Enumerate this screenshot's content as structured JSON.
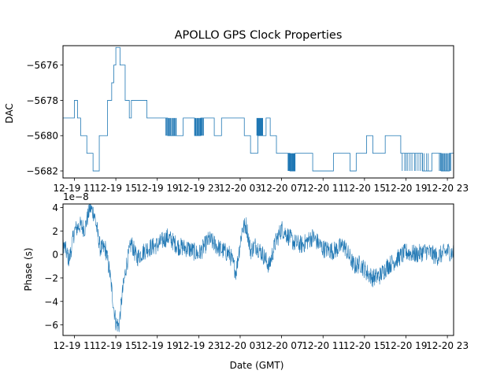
{
  "chart_data": [
    {
      "type": "line",
      "title": "APOLLO GPS Clock Properties",
      "xlabel": "",
      "ylabel": "DAC",
      "x_ticks": [
        "12-19 11",
        "12-19 15",
        "12-19 19",
        "12-19 23",
        "12-20 03",
        "12-20 07",
        "12-20 11",
        "12-20 15",
        "12-20 19",
        "12-20 23"
      ],
      "x_tick_hours": [
        11,
        15,
        19,
        23,
        27,
        31,
        35,
        39,
        43,
        47
      ],
      "xlim_hours": [
        9.9,
        47.6
      ],
      "ylim": [
        -5682.4,
        -5674.9
      ],
      "y_ticks": [
        -5676,
        -5678,
        -5680,
        -5682
      ],
      "y_tick_labels": [
        "−5676",
        "−5678",
        "−5680",
        "−5682"
      ],
      "grid": false,
      "series": [
        {
          "name": "DAC",
          "color": "#1f77b4",
          "hours": [
            9.9,
            11.0,
            11.3,
            11.6,
            12.2,
            12.8,
            13.4,
            14.2,
            14.6,
            14.8,
            15.0,
            15.4,
            15.9,
            16.3,
            16.5,
            17.5,
            18.0,
            18.5,
            19.0,
            20.0,
            21.5,
            22.6,
            23.2,
            24.5,
            25.2,
            25.8,
            26.2,
            27.4,
            28.0,
            28.7,
            29.5,
            29.9,
            30.5,
            31.8,
            32.3,
            33.0,
            34.0,
            35.3,
            36.0,
            37.6,
            38.2,
            38.5,
            39.2,
            39.8,
            41.0,
            42.5,
            43.3,
            44.6,
            45.5,
            46.4,
            47.2,
            47.6
          ],
          "values": [
            -5679,
            -5678,
            -5679,
            -5680,
            -5681,
            -5682,
            -5680,
            -5678,
            -5677,
            -5676,
            -5675,
            -5676,
            -5678,
            -5679,
            -5678,
            -5678,
            -5679,
            -5679,
            -5679,
            -5680,
            -5679,
            -5680,
            -5679,
            -5680,
            -5679,
            -5679,
            -5679,
            -5680,
            -5681,
            -5680,
            -5679,
            -5680,
            -5681,
            -5682,
            -5681,
            -5681,
            -5682,
            -5682,
            -5681,
            -5682,
            -5681,
            -5681,
            -5680,
            -5681,
            -5680,
            -5681,
            -5681,
            -5682,
            -5681,
            -5682,
            -5681,
            -5682
          ]
        }
      ]
    },
    {
      "type": "line",
      "title": "",
      "xlabel": "Date (GMT)",
      "ylabel": "Phase (s)",
      "offset_label": "1e−8",
      "x_ticks": [
        "12-19 11",
        "12-19 15",
        "12-19 19",
        "12-19 23",
        "12-20 03",
        "12-20 07",
        "12-20 11",
        "12-20 15",
        "12-20 19",
        "12-20 23"
      ],
      "x_tick_hours": [
        11,
        15,
        19,
        23,
        27,
        31,
        35,
        39,
        43,
        47
      ],
      "xlim_hours": [
        9.9,
        47.6
      ],
      "ylim": [
        -6.9,
        4.3
      ],
      "y_ticks": [
        4,
        2,
        0,
        -2,
        -4,
        -6
      ],
      "y_tick_labels": [
        "4",
        "2",
        "0",
        "−2",
        "−4",
        "−6"
      ],
      "grid": false,
      "series": [
        {
          "name": "Phase",
          "color": "#1f77b4",
          "hours": [
            9.9,
            10.5,
            11.0,
            11.5,
            12.0,
            12.5,
            12.9,
            13.5,
            14.0,
            14.4,
            14.8,
            15.0,
            15.3,
            15.6,
            16.0,
            16.5,
            17.0,
            18.0,
            19.0,
            20.0,
            21.0,
            22.0,
            23.0,
            24.0,
            25.0,
            26.0,
            26.6,
            27.2,
            27.6,
            28.0,
            28.5,
            29.2,
            29.8,
            30.4,
            31.0,
            31.6,
            32.2,
            33.0,
            34.0,
            35.0,
            36.0,
            37.0,
            38.0,
            38.6,
            39.2,
            39.8,
            40.5,
            41.2,
            42.0,
            43.0,
            44.0,
            45.0,
            46.0,
            47.0,
            47.6
          ],
          "values": [
            1.0,
            -0.5,
            2.0,
            2.5,
            2.2,
            4.0,
            3.5,
            0.5,
            0.5,
            -1.5,
            -4.5,
            -5.8,
            -6.1,
            -3.5,
            -1.0,
            1.0,
            -0.3,
            0.5,
            0.8,
            1.5,
            0.7,
            0.5,
            0.0,
            1.3,
            0.5,
            0.0,
            -1.5,
            2.2,
            2.5,
            0.3,
            0.8,
            0.0,
            -1.0,
            1.0,
            2.2,
            1.6,
            1.0,
            0.8,
            1.5,
            0.5,
            0.3,
            0.8,
            -1.0,
            -0.8,
            -1.5,
            -2.0,
            -1.8,
            -1.0,
            -0.5,
            0.2,
            0.0,
            0.3,
            -0.2,
            0.3,
            0.1
          ]
        }
      ]
    }
  ]
}
